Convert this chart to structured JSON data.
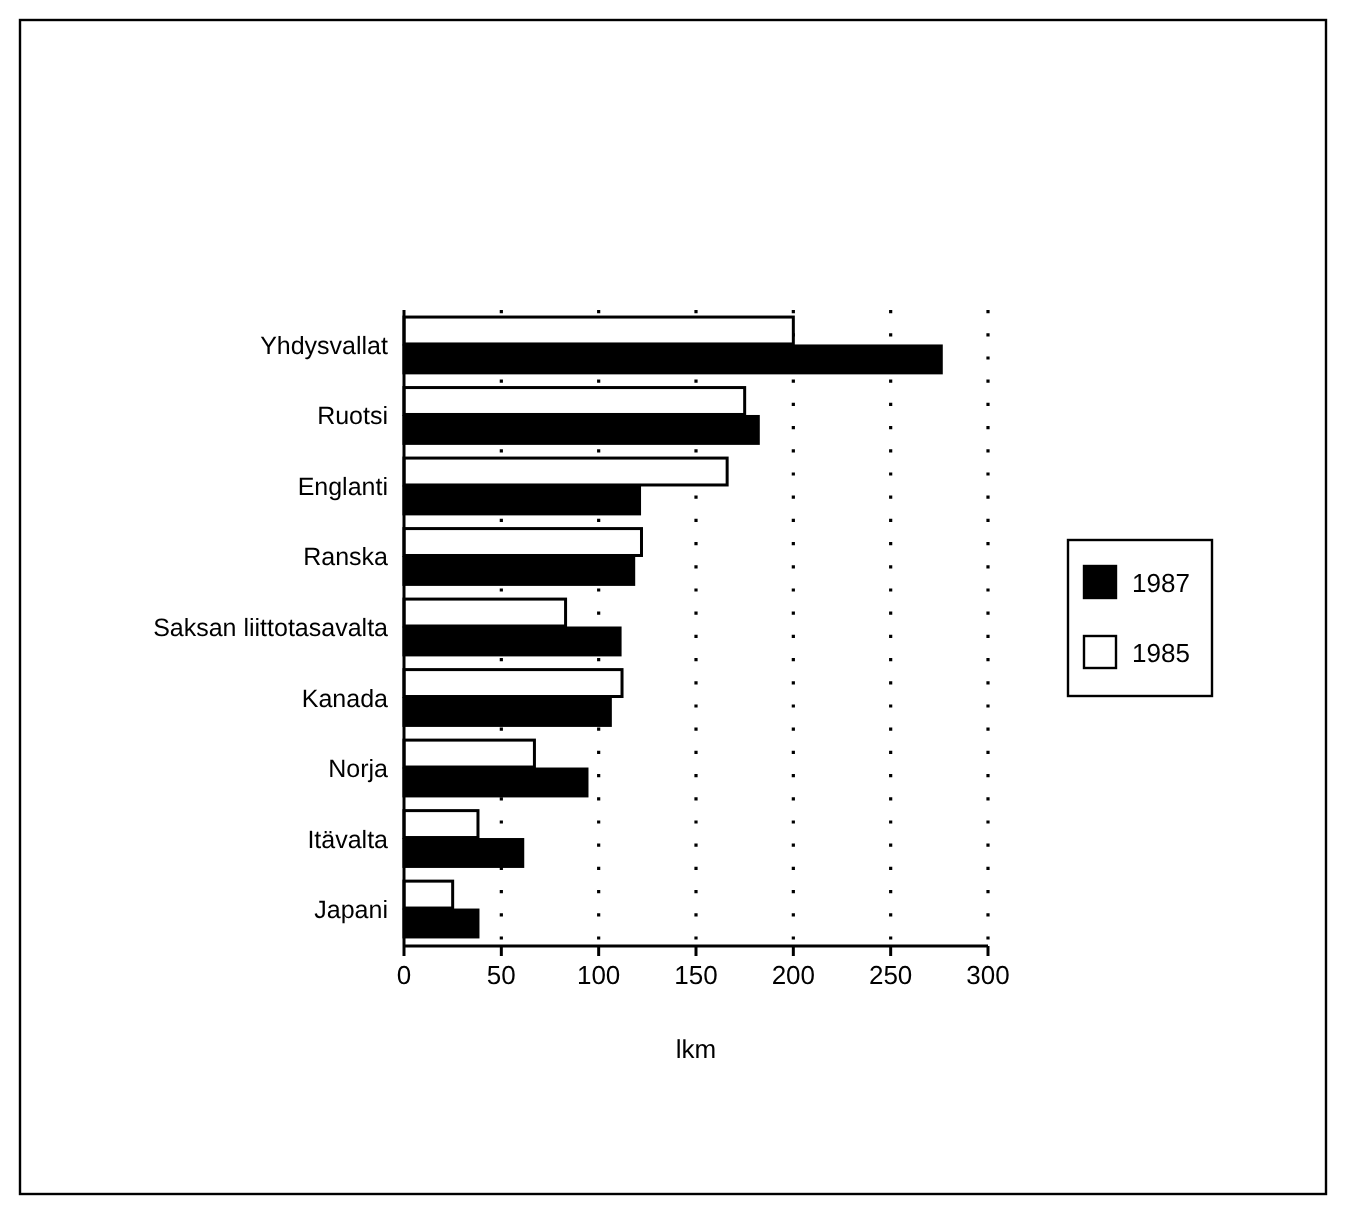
{
  "chart_data": {
    "type": "bar",
    "orientation": "horizontal",
    "xlabel": "lkm",
    "categories": [
      "Yhdysvallat",
      "Ruotsi",
      "Englanti",
      "Ranska",
      "Saksan liittotasavalta",
      "Kanada",
      "Norja",
      "Itävalta",
      "Japani"
    ],
    "series": [
      {
        "name": "1985",
        "color": "#ffffff",
        "values": [
          200,
          175,
          166,
          122,
          83,
          112,
          67,
          38,
          25
        ]
      },
      {
        "name": "1987",
        "color": "#000000",
        "values": [
          276,
          182,
          121,
          118,
          111,
          106,
          94,
          61,
          38
        ]
      }
    ],
    "xlim": [
      0,
      300
    ],
    "xticks": [
      0,
      50,
      100,
      150,
      200,
      250,
      300
    ],
    "grid": "x",
    "legend": "right"
  }
}
